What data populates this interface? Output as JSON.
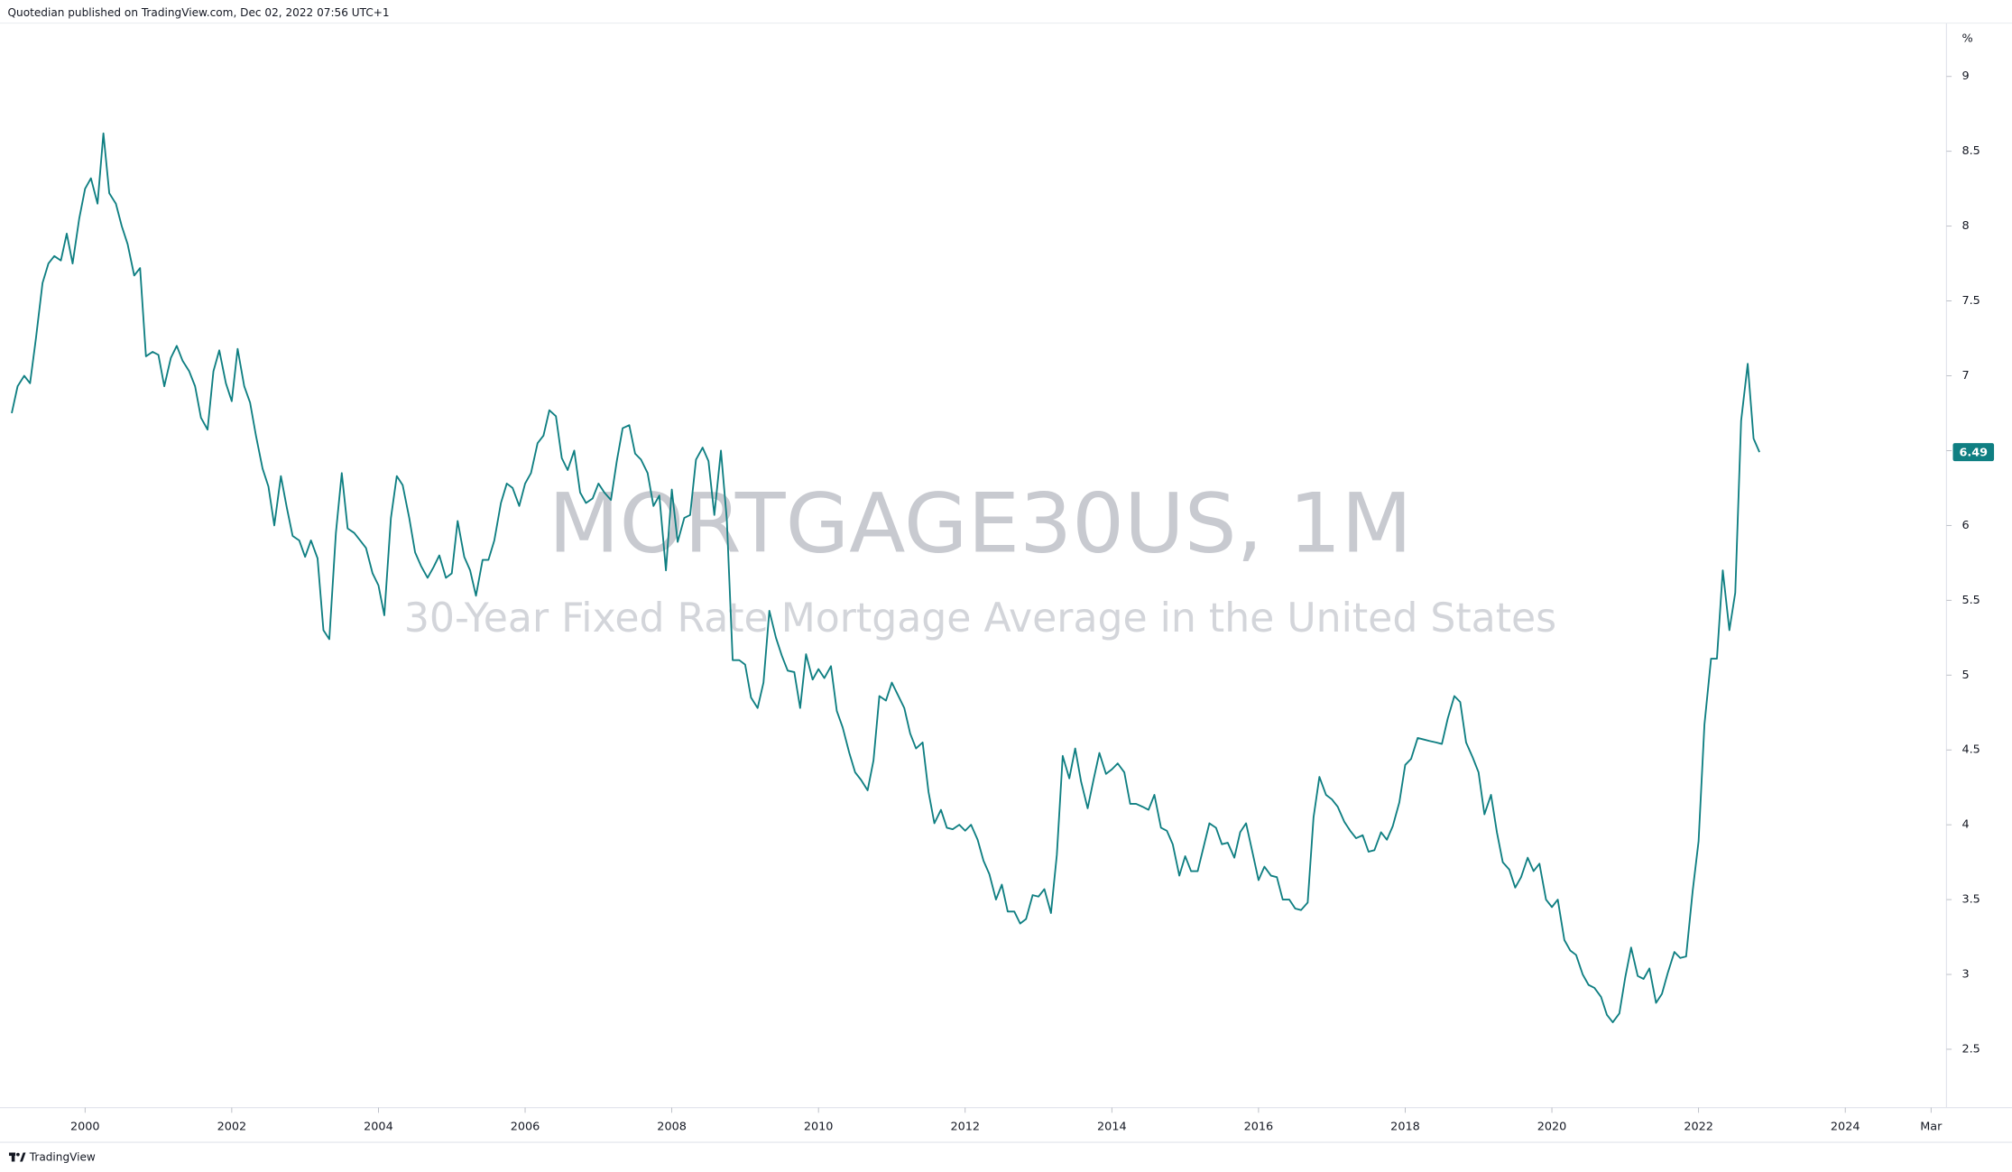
{
  "chart_data": {
    "type": "line",
    "title": "MORTGAGE30US, 1M",
    "subtitle": "30-Year Fixed Rate Mortgage Average in the United States",
    "attribution": "Quotedian published on TradingView.com, Dec 02, 2022 07:56 UTC+1",
    "footer": "TradingView",
    "y_unit": "%",
    "color": "#0f7f82",
    "xlim": [
      1998.84,
      2025.38
    ],
    "xticks": [
      2000,
      2002,
      2004,
      2006,
      2008,
      2010,
      2012,
      2014,
      2016,
      2018,
      2020,
      2022,
      2024,
      {
        "value": 2025.17,
        "label": "Mar"
      }
    ],
    "ylim": [
      2.11,
      9.51
    ],
    "yticks": [
      2.5,
      3,
      3.5,
      4,
      4.5,
      5,
      5.5,
      6,
      6.5,
      7,
      7.5,
      8,
      8.5,
      9
    ],
    "x": [
      1999,
      1999.08,
      1999.17,
      1999.25,
      1999.33,
      1999.42,
      1999.5,
      1999.58,
      1999.67,
      1999.75,
      1999.83,
      1999.92,
      2000,
      2000.08,
      2000.17,
      2000.25,
      2000.33,
      2000.42,
      2000.5,
      2000.58,
      2000.67,
      2000.75,
      2000.83,
      2000.92,
      2001,
      2001.08,
      2001.17,
      2001.25,
      2001.33,
      2001.42,
      2001.5,
      2001.58,
      2001.67,
      2001.75,
      2001.83,
      2001.92,
      2002,
      2002.08,
      2002.17,
      2002.25,
      2002.33,
      2002.42,
      2002.5,
      2002.58,
      2002.67,
      2002.75,
      2002.83,
      2002.92,
      2003,
      2003.08,
      2003.17,
      2003.25,
      2003.33,
      2003.42,
      2003.5,
      2003.58,
      2003.67,
      2003.75,
      2003.83,
      2003.92,
      2004,
      2004.08,
      2004.17,
      2004.25,
      2004.33,
      2004.42,
      2004.5,
      2004.58,
      2004.67,
      2004.75,
      2004.83,
      2004.92,
      2005,
      2005.08,
      2005.17,
      2005.25,
      2005.33,
      2005.42,
      2005.5,
      2005.58,
      2005.67,
      2005.75,
      2005.83,
      2005.92,
      2006,
      2006.08,
      2006.17,
      2006.25,
      2006.33,
      2006.42,
      2006.5,
      2006.58,
      2006.67,
      2006.75,
      2006.83,
      2006.92,
      2007,
      2007.08,
      2007.17,
      2007.25,
      2007.33,
      2007.42,
      2007.5,
      2007.58,
      2007.67,
      2007.75,
      2007.83,
      2007.92,
      2008,
      2008.08,
      2008.17,
      2008.25,
      2008.33,
      2008.42,
      2008.5,
      2008.58,
      2008.67,
      2008.75,
      2008.83,
      2008.92,
      2009,
      2009.08,
      2009.17,
      2009.25,
      2009.33,
      2009.42,
      2009.5,
      2009.58,
      2009.67,
      2009.75,
      2009.83,
      2009.92,
      2010,
      2010.08,
      2010.17,
      2010.25,
      2010.33,
      2010.42,
      2010.5,
      2010.58,
      2010.67,
      2010.75,
      2010.83,
      2010.92,
      2011,
      2011.08,
      2011.17,
      2011.25,
      2011.33,
      2011.42,
      2011.5,
      2011.58,
      2011.67,
      2011.75,
      2011.83,
      2011.92,
      2012,
      2012.08,
      2012.17,
      2012.25,
      2012.33,
      2012.42,
      2012.5,
      2012.58,
      2012.67,
      2012.75,
      2012.83,
      2012.92,
      2013,
      2013.08,
      2013.17,
      2013.25,
      2013.33,
      2013.42,
      2013.5,
      2013.58,
      2013.67,
      2013.75,
      2013.83,
      2013.92,
      2014,
      2014.08,
      2014.17,
      2014.25,
      2014.33,
      2014.42,
      2014.5,
      2014.58,
      2014.67,
      2014.75,
      2014.83,
      2014.92,
      2015,
      2015.08,
      2015.17,
      2015.25,
      2015.33,
      2015.42,
      2015.5,
      2015.58,
      2015.67,
      2015.75,
      2015.83,
      2015.92,
      2016,
      2016.08,
      2016.17,
      2016.25,
      2016.33,
      2016.42,
      2016.5,
      2016.58,
      2016.67,
      2016.75,
      2016.83,
      2016.92,
      2017,
      2017.08,
      2017.17,
      2017.25,
      2017.33,
      2017.42,
      2017.5,
      2017.58,
      2017.67,
      2017.75,
      2017.83,
      2017.92,
      2018,
      2018.08,
      2018.17,
      2018.25,
      2018.33,
      2018.42,
      2018.5,
      2018.58,
      2018.67,
      2018.75,
      2018.83,
      2018.92,
      2019,
      2019.08,
      2019.17,
      2019.25,
      2019.33,
      2019.42,
      2019.5,
      2019.58,
      2019.67,
      2019.75,
      2019.83,
      2019.92,
      2020,
      2020.08,
      2020.17,
      2020.25,
      2020.33,
      2020.42,
      2020.5,
      2020.58,
      2020.67,
      2020.75,
      2020.83,
      2020.92,
      2021,
      2021.08,
      2021.17,
      2021.25,
      2021.33,
      2021.42,
      2021.5,
      2021.58,
      2021.67,
      2021.75,
      2021.83,
      2021.92,
      2022,
      2022.08,
      2022.17,
      2022.25,
      2022.33,
      2022.42,
      2022.5,
      2022.58,
      2022.67,
      2022.75,
      2022.83
    ],
    "values": [
      6.75,
      6.93,
      7.0,
      6.95,
      7.25,
      7.62,
      7.75,
      7.8,
      7.77,
      7.95,
      7.75,
      8.05,
      8.25,
      8.32,
      8.15,
      8.62,
      8.22,
      8.15,
      8.0,
      7.88,
      7.67,
      7.72,
      7.13,
      7.16,
      7.14,
      6.93,
      7.12,
      7.2,
      7.1,
      7.03,
      6.93,
      6.72,
      6.64,
      7.03,
      7.17,
      6.95,
      6.83,
      7.18,
      6.93,
      6.82,
      6.6,
      6.38,
      6.26,
      6.0,
      6.33,
      6.12,
      5.93,
      5.9,
      5.79,
      5.9,
      5.78,
      5.3,
      5.24,
      5.95,
      6.35,
      5.98,
      5.95,
      5.9,
      5.85,
      5.68,
      5.6,
      5.4,
      6.05,
      6.33,
      6.27,
      6.05,
      5.82,
      5.73,
      5.65,
      5.72,
      5.8,
      5.65,
      5.68,
      6.03,
      5.79,
      5.7,
      5.53,
      5.77,
      5.77,
      5.9,
      6.15,
      6.28,
      6.25,
      6.13,
      6.28,
      6.35,
      6.55,
      6.6,
      6.77,
      6.73,
      6.45,
      6.37,
      6.5,
      6.22,
      6.15,
      6.18,
      6.28,
      6.22,
      6.17,
      6.43,
      6.65,
      6.67,
      6.48,
      6.44,
      6.35,
      6.13,
      6.2,
      5.7,
      6.24,
      5.89,
      6.05,
      6.07,
      6.44,
      6.52,
      6.43,
      6.07,
      6.5,
      6.04,
      5.1,
      5.1,
      5.07,
      4.85,
      4.78,
      4.95,
      5.43,
      5.25,
      5.13,
      5.03,
      5.02,
      4.78,
      5.14,
      4.97,
      5.04,
      4.98,
      5.06,
      4.76,
      4.65,
      4.48,
      4.35,
      4.3,
      4.23,
      4.43,
      4.86,
      4.83,
      4.95,
      4.87,
      4.78,
      4.61,
      4.51,
      4.55,
      4.22,
      4.01,
      4.1,
      3.98,
      3.97,
      4.0,
      3.96,
      4.0,
      3.9,
      3.76,
      3.67,
      3.5,
      3.6,
      3.42,
      3.42,
      3.34,
      3.37,
      3.53,
      3.52,
      3.57,
      3.41,
      3.8,
      4.46,
      4.31,
      4.51,
      4.29,
      4.11,
      4.3,
      4.48,
      4.34,
      4.37,
      4.41,
      4.35,
      4.14,
      4.14,
      4.12,
      4.1,
      4.2,
      3.98,
      3.96,
      3.87,
      3.66,
      3.79,
      3.69,
      3.69,
      3.85,
      4.01,
      3.98,
      3.87,
      3.88,
      3.78,
      3.95,
      4.01,
      3.81,
      3.63,
      3.72,
      3.66,
      3.65,
      3.5,
      3.5,
      3.44,
      3.43,
      3.48,
      4.05,
      4.32,
      4.2,
      4.17,
      4.12,
      4.02,
      3.96,
      3.91,
      3.93,
      3.82,
      3.83,
      3.95,
      3.9,
      3.99,
      4.15,
      4.4,
      4.44,
      4.58,
      4.57,
      4.56,
      4.55,
      4.54,
      4.71,
      4.86,
      4.82,
      4.55,
      4.45,
      4.35,
      4.07,
      4.2,
      3.95,
      3.75,
      3.7,
      3.58,
      3.65,
      3.78,
      3.69,
      3.74,
      3.5,
      3.45,
      3.5,
      3.23,
      3.16,
      3.13,
      3.0,
      2.93,
      2.91,
      2.85,
      2.73,
      2.68,
      2.74,
      2.98,
      3.18,
      2.99,
      2.97,
      3.04,
      2.81,
      2.87,
      3.01,
      3.15,
      3.11,
      3.12,
      3.56,
      3.89,
      4.67,
      5.11,
      5.11,
      5.7,
      5.3,
      5.55,
      6.7,
      7.08,
      6.58,
      6.49
    ]
  }
}
